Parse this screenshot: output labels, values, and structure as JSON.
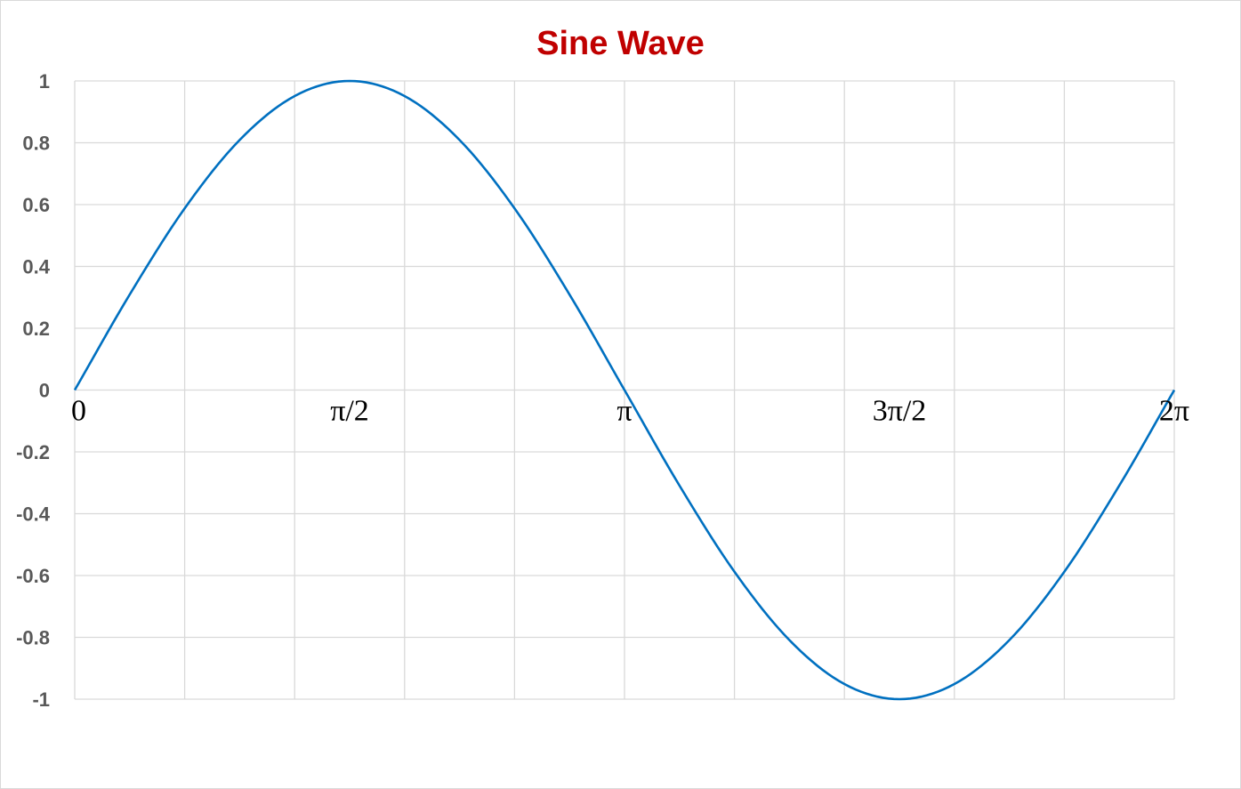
{
  "chart_data": {
    "type": "line",
    "title": "Sine Wave",
    "xlabel": "",
    "ylabel": "",
    "xlim": [
      0,
      6.2832
    ],
    "ylim": [
      -1,
      1
    ],
    "y_ticks": [
      {
        "value": 1,
        "label": "1"
      },
      {
        "value": 0.8,
        "label": "0.8"
      },
      {
        "value": 0.6,
        "label": "0.6"
      },
      {
        "value": 0.4,
        "label": "0.4"
      },
      {
        "value": 0.2,
        "label": "0.2"
      },
      {
        "value": 0,
        "label": "0"
      },
      {
        "value": -0.2,
        "label": "-0.2"
      },
      {
        "value": -0.4,
        "label": "-0.4"
      },
      {
        "value": -0.6,
        "label": "-0.6"
      },
      {
        "value": -0.8,
        "label": "-0.8"
      },
      {
        "value": -1,
        "label": "-1"
      }
    ],
    "x_ticks": [
      {
        "value": 0,
        "label": "0"
      },
      {
        "value": 1.5708,
        "label": "π/2"
      },
      {
        "value": 3.1416,
        "label": "π"
      },
      {
        "value": 4.7124,
        "label": "3π/2"
      },
      {
        "value": 6.2832,
        "label": "2π"
      }
    ],
    "grid": true,
    "legend": "none",
    "series": [
      {
        "color": "#0070c0",
        "x": [
          0,
          0.3142,
          0.6283,
          0.9425,
          1.2566,
          1.5708,
          1.885,
          2.1991,
          2.5133,
          2.8274,
          3.1416,
          3.4558,
          3.7699,
          4.0841,
          4.3982,
          4.7124,
          5.0265,
          5.3407,
          5.6549,
          5.969,
          6.2832
        ],
        "y": [
          0,
          0.309,
          0.5878,
          0.809,
          0.9511,
          1,
          0.9511,
          0.809,
          0.5878,
          0.309,
          0,
          -0.309,
          -0.5878,
          -0.809,
          -0.9511,
          -1,
          -0.9511,
          -0.809,
          -0.5878,
          -0.309,
          0
        ]
      }
    ],
    "colors": {
      "title": "#c00000",
      "line": "#0070c0",
      "grid": "#d9d9d9",
      "tick_text": "#595959"
    }
  }
}
